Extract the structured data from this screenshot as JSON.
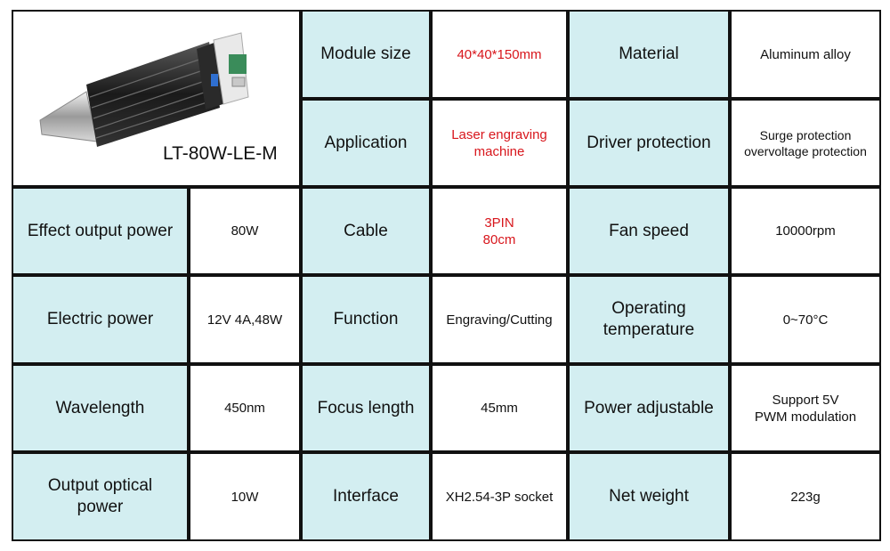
{
  "product": {
    "model": "LT-80W-LE-M"
  },
  "specs": {
    "module_size": {
      "label": "Module size",
      "value": "40*40*150mm"
    },
    "material": {
      "label": "Material",
      "value": "Aluminum alloy"
    },
    "application": {
      "label": "Application",
      "value_line1": "Laser engraving",
      "value_line2": "machine"
    },
    "driver_protection": {
      "label": "Driver protection",
      "value_line1": "Surge protection",
      "value_line2": "overvoltage protection"
    },
    "effect_output_power": {
      "label": "Effect output power",
      "value": "80W"
    },
    "cable": {
      "label": "Cable",
      "value_line1": "3PIN",
      "value_line2": "80cm"
    },
    "fan_speed": {
      "label": "Fan speed",
      "value": "10000rpm"
    },
    "electric_power": {
      "label": "Electric power",
      "value": "12V 4A,48W"
    },
    "function": {
      "label": "Function",
      "value": "Engraving/Cutting"
    },
    "operating_temperature": {
      "label_line1": "Operating",
      "label_line2": "temperature",
      "value": "0~70°C"
    },
    "wavelength": {
      "label": "Wavelength",
      "value": "450nm"
    },
    "focus_length": {
      "label": "Focus length",
      "value": "45mm"
    },
    "power_adjustable": {
      "label": "Power adjustable",
      "value_line1": "Support 5V",
      "value_line2": "PWM modulation"
    },
    "output_optical_power": {
      "label_line1": "Output optical",
      "label_line2": "power",
      "value": "10W"
    },
    "interface": {
      "label": "Interface",
      "value": "XH2.54-3P socket"
    },
    "net_weight": {
      "label": "Net weight",
      "value": "223g"
    }
  },
  "colors": {
    "header_bg": "#d3eef1",
    "border": "#111111",
    "accent_red": "#d8161c"
  },
  "icons": {
    "product_image": "laser-module-image"
  }
}
